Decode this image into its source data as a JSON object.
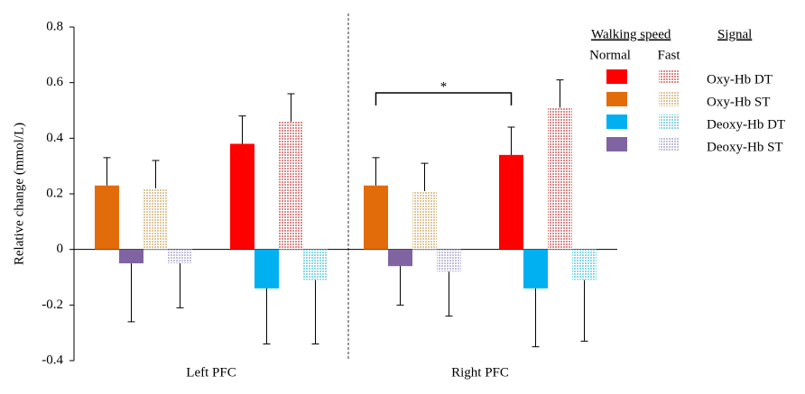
{
  "chart_data": {
    "type": "bar",
    "ylabel": "Relative change (mmol/L)",
    "categories": [
      "Left PFC",
      "Right PFC"
    ],
    "ylim": [
      -0.4,
      0.8
    ],
    "yticks": [
      -0.4,
      -0.2,
      0,
      0.2,
      0.4,
      0.6,
      0.8
    ],
    "legend": {
      "speed_title": "Walking  speed",
      "signal_title": "Signal",
      "speeds": [
        "Normal",
        "Fast"
      ]
    },
    "series": [
      {
        "name": "Oxy-Hb DT",
        "color": "#ff0000",
        "fast_color": "#d98c8c",
        "normal": [
          0.38,
          0.34
        ],
        "normal_err": [
          0.1,
          0.1
        ],
        "fast": [
          0.46,
          0.51
        ],
        "fast_err": [
          0.1,
          0.1
        ]
      },
      {
        "name": "Oxy-Hb ST",
        "color": "#e36c0a",
        "fast_color": "#dcc79c",
        "normal": [
          0.23,
          0.23
        ],
        "normal_err": [
          0.1,
          0.1
        ],
        "fast": [
          0.22,
          0.21
        ],
        "fast_err": [
          0.1,
          0.1
        ]
      },
      {
        "name": "Deoxy-Hb DT",
        "color": "#00b0f0",
        "fast_color": "#8fd6e0",
        "normal": [
          -0.14,
          -0.14
        ],
        "normal_err": [
          0.2,
          0.21
        ],
        "fast": [
          -0.11,
          -0.11
        ],
        "fast_err": [
          0.23,
          0.22
        ]
      },
      {
        "name": "Deoxy-Hb ST",
        "color": "#8064a2",
        "fast_color": "#c4bfd6",
        "normal": [
          -0.05,
          -0.06
        ],
        "normal_err": [
          0.21,
          0.14
        ],
        "fast": [
          -0.05,
          -0.08
        ],
        "fast_err": [
          0.16,
          0.16
        ]
      }
    ],
    "annotation": "*"
  }
}
